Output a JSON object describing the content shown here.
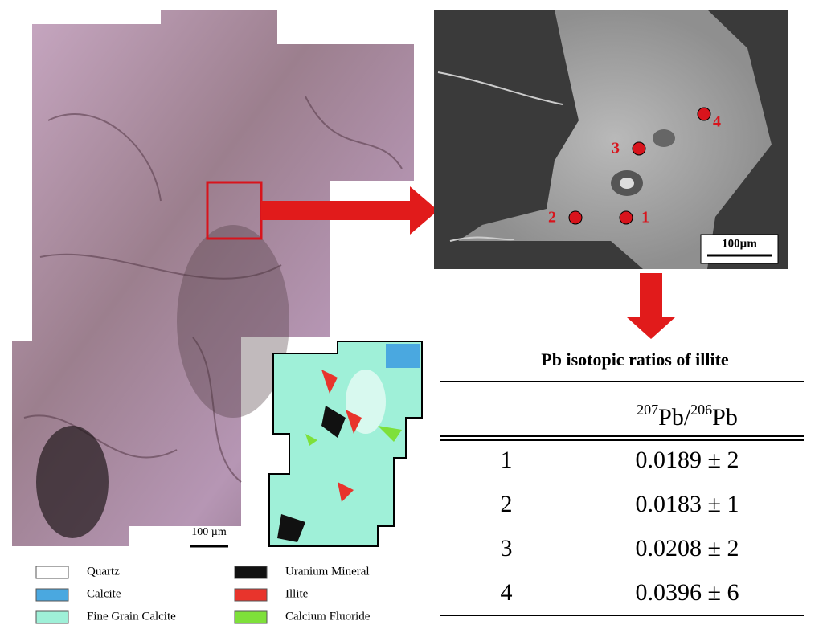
{
  "micrograph": {
    "scale_label": "100 µm"
  },
  "sem_image": {
    "points": [
      "1",
      "2",
      "3",
      "4"
    ],
    "scale_label": "100µm"
  },
  "legend": [
    {
      "label": "Quartz",
      "color": "#ffffff"
    },
    {
      "label": "Calcite",
      "color": "#4aa8e0"
    },
    {
      "label": "Fine Grain Calcite",
      "color": "#9ff0d8"
    },
    {
      "label": "Uranium Mineral",
      "color": "#111111"
    },
    {
      "label": "Illite",
      "color": "#e8342c"
    },
    {
      "label": "Calcium Fluoride",
      "color": "#7ee03a"
    }
  ],
  "table": {
    "title": "Pb isotopic ratios of illite",
    "header": [
      "207",
      "Pb/",
      "206",
      "Pb"
    ],
    "rows": [
      [
        "1",
        "0.0189 ± 2"
      ],
      [
        "2",
        "0.0183 ± 1"
      ],
      [
        "3",
        "0.0208 ± 2"
      ],
      [
        "4",
        "0.0396 ± 6"
      ]
    ]
  }
}
